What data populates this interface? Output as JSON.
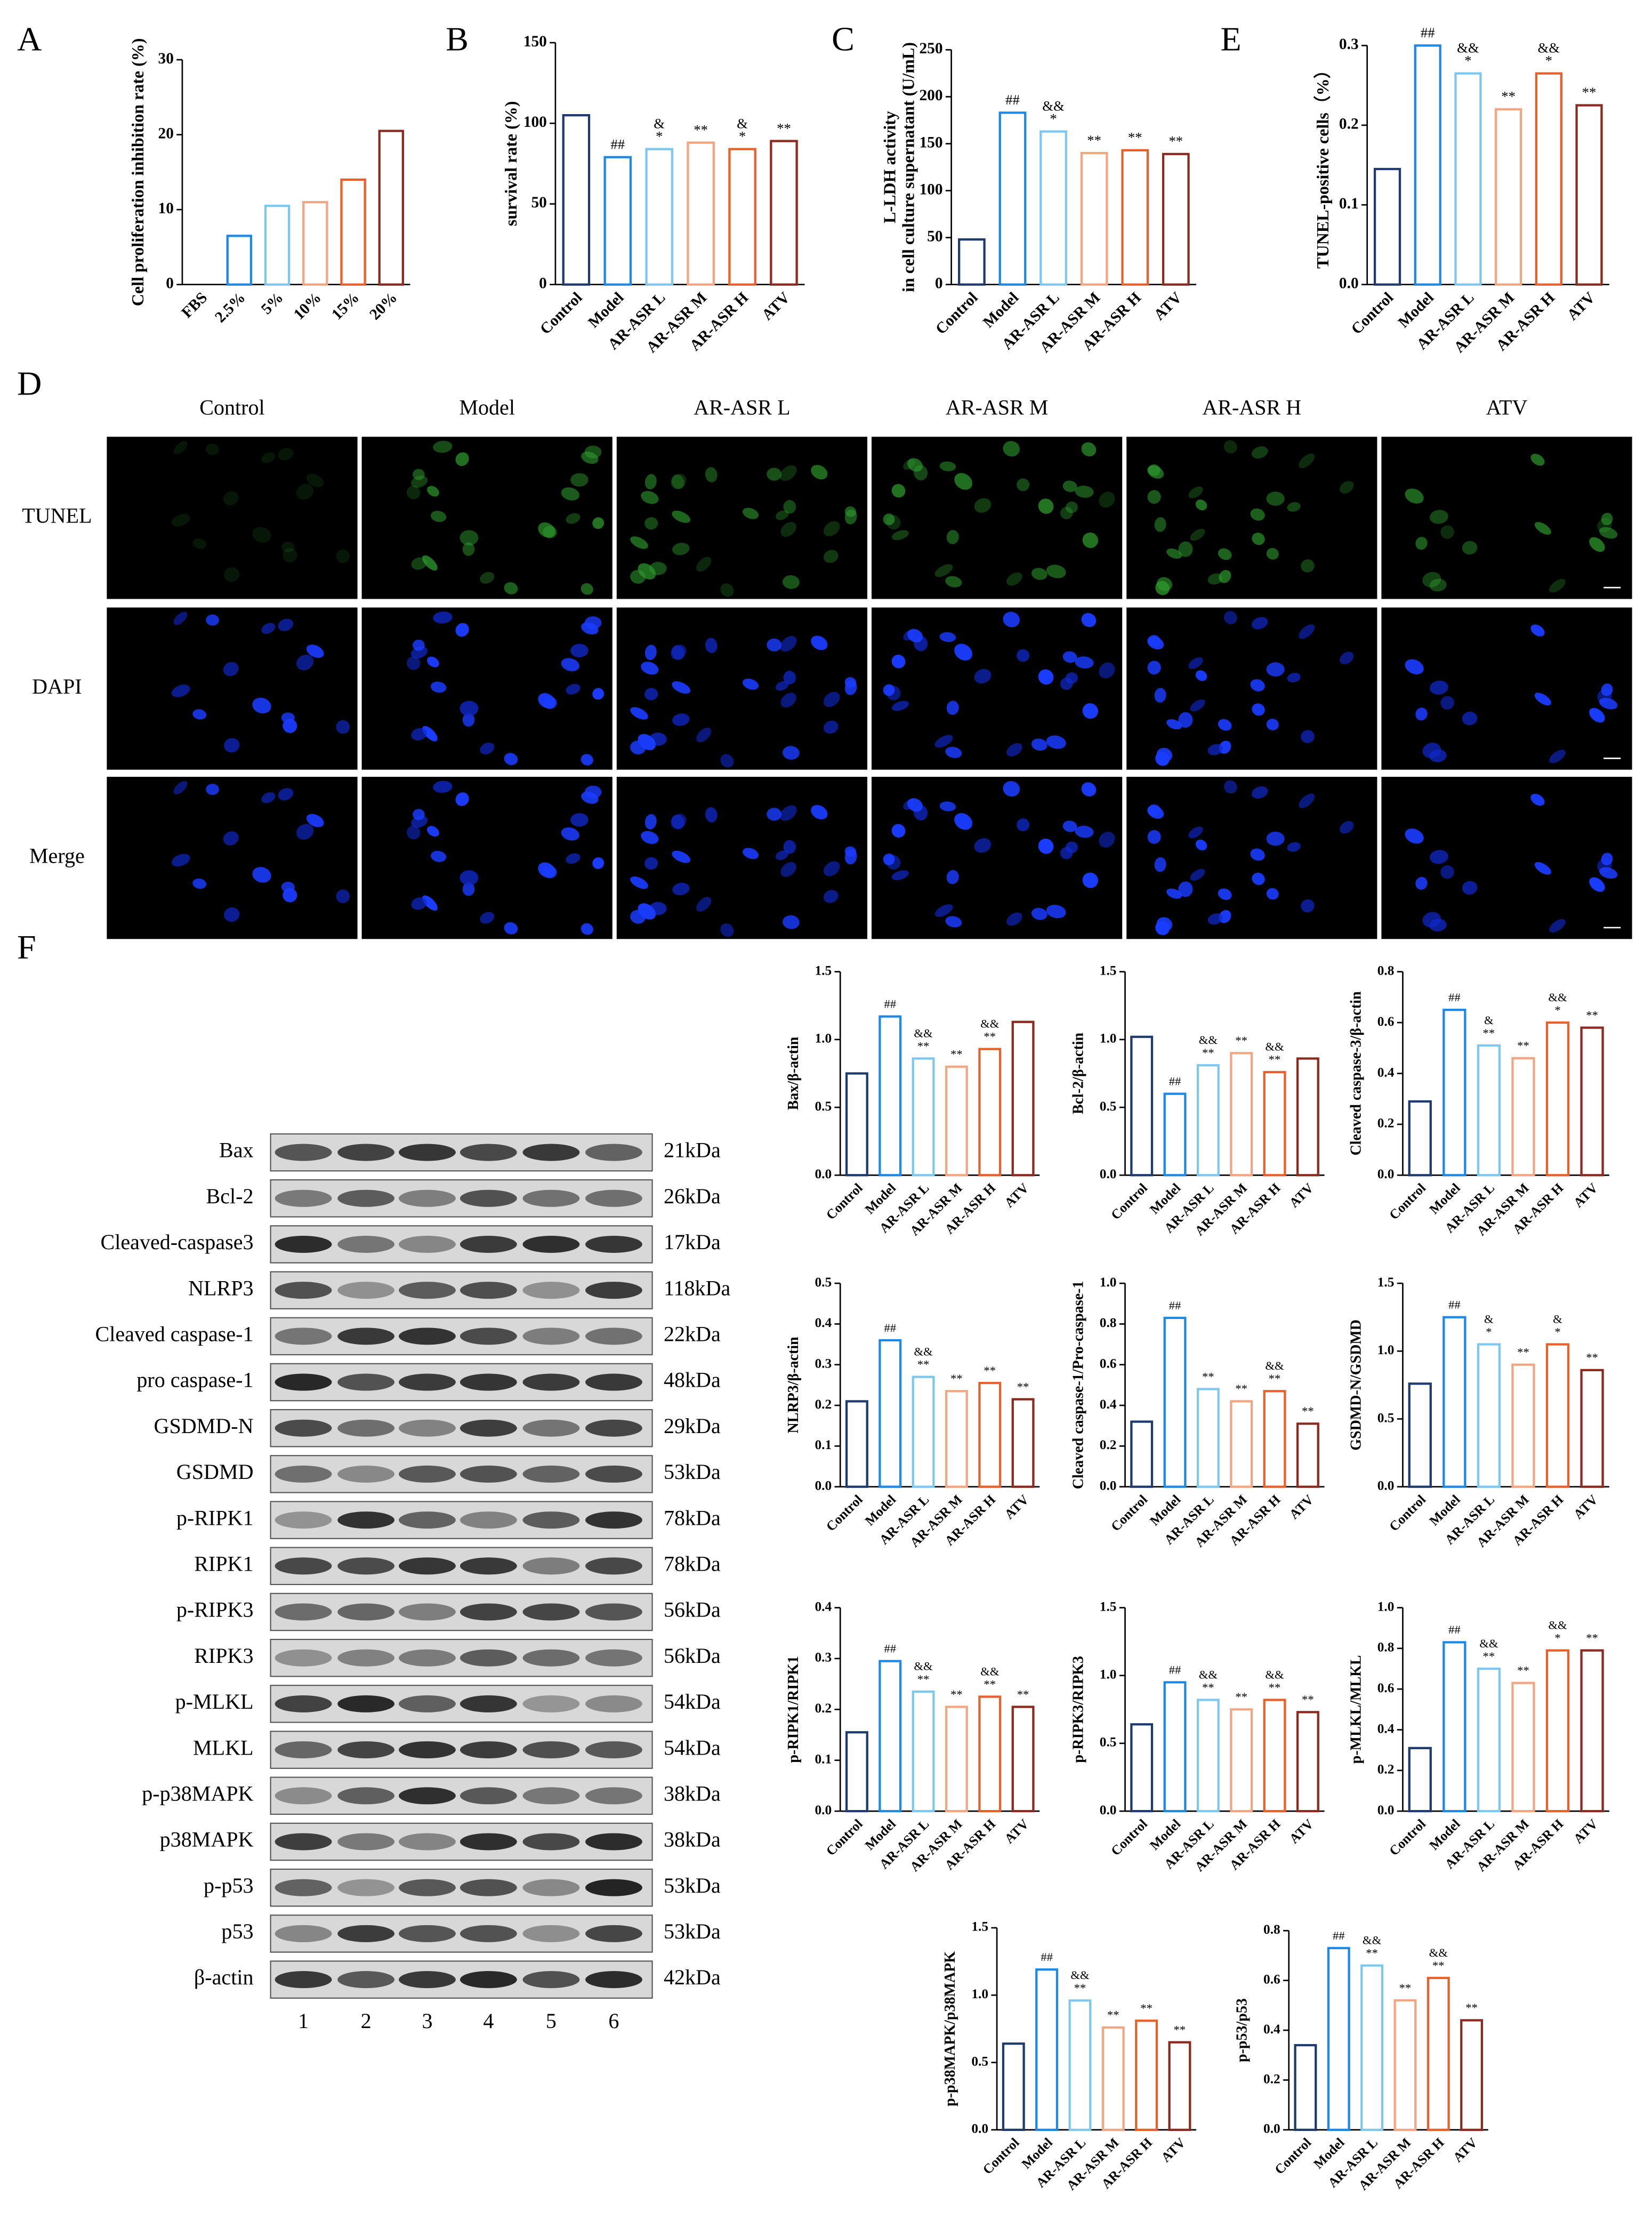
{
  "chart_data": [
    {
      "type": "bar",
      "panel": "A",
      "ylabel": [
        "Cell proliferation inhibition rate (%)"
      ],
      "categories": [
        "FBS",
        "2.5%",
        "5%",
        "10%",
        "15%",
        "20%"
      ],
      "values": [
        0,
        6.5,
        10.5,
        11,
        14,
        20.5
      ],
      "colors": [
        "#1f3a6e",
        "#1e88e5",
        "#7ec8f0",
        "#f4a582",
        "#e8602c",
        "#8b2a1e"
      ],
      "annotations": [
        [],
        [],
        [],
        [],
        [],
        []
      ],
      "ylim": [
        0,
        30
      ],
      "yticks": [
        0,
        10,
        20,
        30
      ]
    },
    {
      "type": "bar",
      "panel": "B",
      "ylabel": [
        "survival rate (%)"
      ],
      "categories": [
        "Control",
        "Model",
        "AR-ASR L",
        "AR-ASR M",
        "AR-ASR H",
        "ATV"
      ],
      "values": [
        105,
        79,
        84,
        88,
        84,
        89
      ],
      "colors": [
        "#1f3a6e",
        "#1e88e5",
        "#7ec8f0",
        "#f4a582",
        "#e8602c",
        "#8b2a1e"
      ],
      "annotations": [
        [],
        [
          "##"
        ],
        [
          "&",
          "*"
        ],
        [
          "**"
        ],
        [
          "&",
          "*"
        ],
        [
          "**"
        ]
      ],
      "ylim": [
        0,
        150
      ],
      "yticks": [
        0,
        50,
        100,
        150
      ]
    },
    {
      "type": "bar",
      "panel": "C",
      "ylabel": [
        "L-LDH activity",
        "in cell culture supernatant (U/mL)"
      ],
      "categories": [
        "Control",
        "Model",
        "AR-ASR L",
        "AR-ASR M",
        "AR-ASR H",
        "ATV"
      ],
      "values": [
        48,
        183,
        163,
        140,
        143,
        139
      ],
      "colors": [
        "#1f3a6e",
        "#1e88e5",
        "#7ec8f0",
        "#f4a582",
        "#e8602c",
        "#8b2a1e"
      ],
      "annotations": [
        [],
        [
          "##"
        ],
        [
          "&&",
          "*"
        ],
        [
          "**"
        ],
        [
          "**"
        ],
        [
          "**"
        ]
      ],
      "ylim": [
        0,
        250
      ],
      "yticks": [
        0,
        50,
        100,
        150,
        200,
        250
      ]
    },
    {
      "type": "bar",
      "panel": "E",
      "ylabel": [
        "TUNEL-positive cells（%）"
      ],
      "categories": [
        "Control",
        "Model",
        "AR-ASR L",
        "AR-ASR M",
        "AR-ASR H",
        "ATV"
      ],
      "values": [
        0.145,
        0.3,
        0.265,
        0.22,
        0.265,
        0.225
      ],
      "colors": [
        "#1f3a6e",
        "#1e88e5",
        "#7ec8f0",
        "#f4a582",
        "#e8602c",
        "#8b2a1e"
      ],
      "annotations": [
        [],
        [
          "##"
        ],
        [
          "&&",
          "*"
        ],
        [
          "**"
        ],
        [
          "&&",
          "*"
        ],
        [
          "**"
        ]
      ],
      "ylim": [
        0,
        0.3
      ],
      "yticks": [
        {
          "value": 0,
          "label": "0.0"
        },
        0.1,
        0.2,
        0.3
      ]
    },
    {
      "type": "bar",
      "ylabel": [
        "Bax/β-actin"
      ],
      "categories": [
        "Control",
        "Model",
        "AR-ASR L",
        "AR-ASR M",
        "AR-ASR H",
        "ATV"
      ],
      "values": [
        0.75,
        1.17,
        0.86,
        0.8,
        0.93,
        1.13
      ],
      "colors": [
        "#1f3a6e",
        "#1e88e5",
        "#7ec8f0",
        "#f4a582",
        "#e8602c",
        "#8b2a1e"
      ],
      "annotations": [
        [],
        [
          "##"
        ],
        [
          "&&",
          "**"
        ],
        [
          "**"
        ],
        [
          "&&",
          "**"
        ],
        []
      ],
      "ylim": [
        0,
        1.5
      ],
      "yticks": [
        {
          "value": 0,
          "label": "0.0"
        },
        0.5,
        {
          "value": 1,
          "label": "1.0"
        },
        1.5
      ]
    },
    {
      "type": "bar",
      "ylabel": [
        "Bcl-2/β-actin"
      ],
      "categories": [
        "Control",
        "Model",
        "AR-ASR L",
        "AR-ASR M",
        "AR-ASR H",
        "ATV"
      ],
      "values": [
        1.02,
        0.6,
        0.81,
        0.9,
        0.76,
        0.86
      ],
      "colors": [
        "#1f3a6e",
        "#1e88e5",
        "#7ec8f0",
        "#f4a582",
        "#e8602c",
        "#8b2a1e"
      ],
      "annotations": [
        [],
        [
          "##"
        ],
        [
          "&&",
          "**"
        ],
        [
          "**"
        ],
        [
          "&&",
          "**"
        ],
        []
      ],
      "ylim": [
        0,
        1.5
      ],
      "yticks": [
        {
          "value": 0,
          "label": "0.0"
        },
        0.5,
        {
          "value": 1,
          "label": "1.0"
        },
        1.5
      ]
    },
    {
      "type": "bar",
      "ylabel": [
        "Cleaved caspase-3/β-actin"
      ],
      "categories": [
        "Control",
        "Model",
        "AR-ASR L",
        "AR-ASR M",
        "AR-ASR H",
        "ATV"
      ],
      "values": [
        0.29,
        0.65,
        0.51,
        0.46,
        0.6,
        0.58
      ],
      "colors": [
        "#1f3a6e",
        "#1e88e5",
        "#7ec8f0",
        "#f4a582",
        "#e8602c",
        "#8b2a1e"
      ],
      "annotations": [
        [],
        [
          "##"
        ],
        [
          "&",
          "**"
        ],
        [
          "**"
        ],
        [
          "&&",
          "*"
        ],
        [
          "**"
        ]
      ],
      "ylim": [
        0,
        0.8
      ],
      "yticks": [
        {
          "value": 0,
          "label": "0.0"
        },
        0.2,
        0.4,
        0.6,
        0.8
      ]
    },
    {
      "type": "bar",
      "ylabel": [
        "NLRP3/β-actin"
      ],
      "categories": [
        "Control",
        "Model",
        "AR-ASR L",
        "AR-ASR M",
        "AR-ASR H",
        "ATV"
      ],
      "values": [
        0.21,
        0.36,
        0.27,
        0.235,
        0.255,
        0.215
      ],
      "colors": [
        "#1f3a6e",
        "#1e88e5",
        "#7ec8f0",
        "#f4a582",
        "#e8602c",
        "#8b2a1e"
      ],
      "annotations": [
        [],
        [
          "##"
        ],
        [
          "&&",
          "**"
        ],
        [
          "**"
        ],
        [
          "**"
        ],
        [
          "**"
        ]
      ],
      "ylim": [
        0,
        0.5
      ],
      "yticks": [
        {
          "value": 0,
          "label": "0.0"
        },
        0.1,
        0.2,
        0.3,
        0.4,
        0.5
      ]
    },
    {
      "type": "bar",
      "ylabel": [
        "Cleaved caspase-1/Pro-caspase-1"
      ],
      "categories": [
        "Control",
        "Model",
        "AR-ASR L",
        "AR-ASR M",
        "AR-ASR H",
        "ATV"
      ],
      "values": [
        0.32,
        0.83,
        0.48,
        0.42,
        0.47,
        0.31
      ],
      "colors": [
        "#1f3a6e",
        "#1e88e5",
        "#7ec8f0",
        "#f4a582",
        "#e8602c",
        "#8b2a1e"
      ],
      "annotations": [
        [],
        [
          "##"
        ],
        [
          "**"
        ],
        [
          "**"
        ],
        [
          "&&",
          "**"
        ],
        [
          "**"
        ]
      ],
      "ylim": [
        0,
        1
      ],
      "yticks": [
        {
          "value": 0,
          "label": "0.0"
        },
        0.2,
        0.4,
        0.6,
        0.8,
        {
          "value": 1,
          "label": "1.0"
        }
      ]
    },
    {
      "type": "bar",
      "ylabel": [
        "GSDMD-N/GSDMD"
      ],
      "categories": [
        "Control",
        "Model",
        "AR-ASR L",
        "AR-ASR M",
        "AR-ASR H",
        "ATV"
      ],
      "values": [
        0.76,
        1.25,
        1.05,
        0.9,
        1.05,
        0.86
      ],
      "colors": [
        "#1f3a6e",
        "#1e88e5",
        "#7ec8f0",
        "#f4a582",
        "#e8602c",
        "#8b2a1e"
      ],
      "annotations": [
        [],
        [
          "##"
        ],
        [
          "&",
          "*"
        ],
        [
          "**"
        ],
        [
          "&",
          "*"
        ],
        [
          "**"
        ]
      ],
      "ylim": [
        0,
        1.5
      ],
      "yticks": [
        {
          "value": 0,
          "label": "0.0"
        },
        0.5,
        {
          "value": 1,
          "label": "1.0"
        },
        1.5
      ]
    },
    {
      "type": "bar",
      "ylabel": [
        "p-RIPK1/RIPK1"
      ],
      "categories": [
        "Control",
        "Model",
        "AR-ASR L",
        "AR-ASR M",
        "AR-ASR H",
        "ATV"
      ],
      "values": [
        0.155,
        0.295,
        0.235,
        0.205,
        0.225,
        0.205
      ],
      "colors": [
        "#1f3a6e",
        "#1e88e5",
        "#7ec8f0",
        "#f4a582",
        "#e8602c",
        "#8b2a1e"
      ],
      "annotations": [
        [],
        [
          "##"
        ],
        [
          "&&",
          "**"
        ],
        [
          "**"
        ],
        [
          "&&",
          "**"
        ],
        [
          "**"
        ]
      ],
      "ylim": [
        0,
        0.4
      ],
      "yticks": [
        {
          "value": 0,
          "label": "0.0"
        },
        0.1,
        0.2,
        0.3,
        0.4
      ]
    },
    {
      "type": "bar",
      "ylabel": [
        "p-RIPK3/RIPK3"
      ],
      "categories": [
        "Control",
        "Model",
        "AR-ASR L",
        "AR-ASR M",
        "AR-ASR H",
        "ATV"
      ],
      "values": [
        0.64,
        0.95,
        0.82,
        0.75,
        0.82,
        0.73
      ],
      "colors": [
        "#1f3a6e",
        "#1e88e5",
        "#7ec8f0",
        "#f4a582",
        "#e8602c",
        "#8b2a1e"
      ],
      "annotations": [
        [],
        [
          "##"
        ],
        [
          "&&",
          "**"
        ],
        [
          "**"
        ],
        [
          "&&",
          "**"
        ],
        [
          "**"
        ]
      ],
      "ylim": [
        0,
        1.5
      ],
      "yticks": [
        {
          "value": 0,
          "label": "0.0"
        },
        0.5,
        {
          "value": 1,
          "label": "1.0"
        },
        1.5
      ]
    },
    {
      "type": "bar",
      "ylabel": [
        "p-MLKL/MLKL"
      ],
      "categories": [
        "Control",
        "Model",
        "AR-ASR L",
        "AR-ASR M",
        "AR-ASR H",
        "ATV"
      ],
      "values": [
        0.31,
        0.83,
        0.7,
        0.63,
        0.79,
        0.79
      ],
      "colors": [
        "#1f3a6e",
        "#1e88e5",
        "#7ec8f0",
        "#f4a582",
        "#e8602c",
        "#8b2a1e"
      ],
      "annotations": [
        [],
        [
          "##"
        ],
        [
          "&&",
          "**"
        ],
        [
          "**"
        ],
        [
          "&&",
          "*"
        ],
        [
          "**"
        ]
      ],
      "ylim": [
        0,
        1
      ],
      "yticks": [
        {
          "value": 0,
          "label": "0.0"
        },
        0.2,
        0.4,
        0.6,
        0.8,
        {
          "value": 1,
          "label": "1.0"
        }
      ]
    },
    {
      "type": "bar",
      "ylabel": [
        "p-p38MAPK/p38MAPK"
      ],
      "categories": [
        "Control",
        "Model",
        "AR-ASR L",
        "AR-ASR M",
        "AR-ASR H",
        "ATV"
      ],
      "values": [
        0.64,
        1.19,
        0.96,
        0.76,
        0.81,
        0.65
      ],
      "colors": [
        "#1f3a6e",
        "#1e88e5",
        "#7ec8f0",
        "#f4a582",
        "#e8602c",
        "#8b2a1e"
      ],
      "annotations": [
        [],
        [
          "##"
        ],
        [
          "&&",
          "**"
        ],
        [
          "**"
        ],
        [
          "**"
        ],
        [
          "**"
        ]
      ],
      "ylim": [
        0,
        1.5
      ],
      "yticks": [
        {
          "value": 0,
          "label": "0.0"
        },
        0.5,
        {
          "value": 1,
          "label": "1.0"
        },
        1.5
      ]
    },
    {
      "type": "bar",
      "ylabel": [
        "p-p53/p53"
      ],
      "categories": [
        "Control",
        "Model",
        "AR-ASR L",
        "AR-ASR M",
        "AR-ASR H",
        "ATV"
      ],
      "values": [
        0.34,
        0.73,
        0.66,
        0.52,
        0.61,
        0.44
      ],
      "colors": [
        "#1f3a6e",
        "#1e88e5",
        "#7ec8f0",
        "#f4a582",
        "#e8602c",
        "#8b2a1e"
      ],
      "annotations": [
        [],
        [
          "##"
        ],
        [
          "&&",
          "**"
        ],
        [
          "**"
        ],
        [
          "&&",
          "**"
        ],
        [
          "**"
        ]
      ],
      "ylim": [
        0,
        0.8
      ],
      "yticks": [
        {
          "value": 0,
          "label": "0.0"
        },
        0.2,
        0.4,
        0.6,
        0.8
      ]
    }
  ],
  "microscopy": {
    "panel": "D",
    "columns": [
      "Control",
      "Model",
      "AR-ASR L",
      "AR-ASR M",
      "AR-ASR H",
      "ATV"
    ],
    "rows": [
      "TUNEL",
      "DAPI",
      "Merge"
    ]
  },
  "western_blot": {
    "panel": "F",
    "proteins": [
      {
        "name": "Bax",
        "size": "21kDa"
      },
      {
        "name": "Bcl-2",
        "size": "26kDa"
      },
      {
        "name": "Cleaved-caspase3",
        "size": "17kDa"
      },
      {
        "name": "NLRP3",
        "size": "118kDa"
      },
      {
        "name": "Cleaved caspase-1",
        "size": "22kDa"
      },
      {
        "name": "pro caspase-1",
        "size": "48kDa"
      },
      {
        "name": "GSDMD-N",
        "size": "29kDa"
      },
      {
        "name": "GSDMD",
        "size": "53kDa"
      },
      {
        "name": "p-RIPK1",
        "size": "78kDa"
      },
      {
        "name": "RIPK1",
        "size": "78kDa"
      },
      {
        "name": "p-RIPK3",
        "size": "56kDa"
      },
      {
        "name": "RIPK3",
        "size": "56kDa"
      },
      {
        "name": "p-MLKL",
        "size": "54kDa"
      },
      {
        "name": "MLKL",
        "size": "54kDa"
      },
      {
        "name": "p-p38MAPK",
        "size": "38kDa"
      },
      {
        "name": "p38MAPK",
        "size": "38kDa"
      },
      {
        "name": "p-p53",
        "size": "53kDa"
      },
      {
        "name": "p53",
        "size": "53kDa"
      },
      {
        "name": "β-actin",
        "size": "42kDa"
      }
    ],
    "lanes": [
      "1",
      "2",
      "3",
      "4",
      "5",
      "6"
    ]
  }
}
